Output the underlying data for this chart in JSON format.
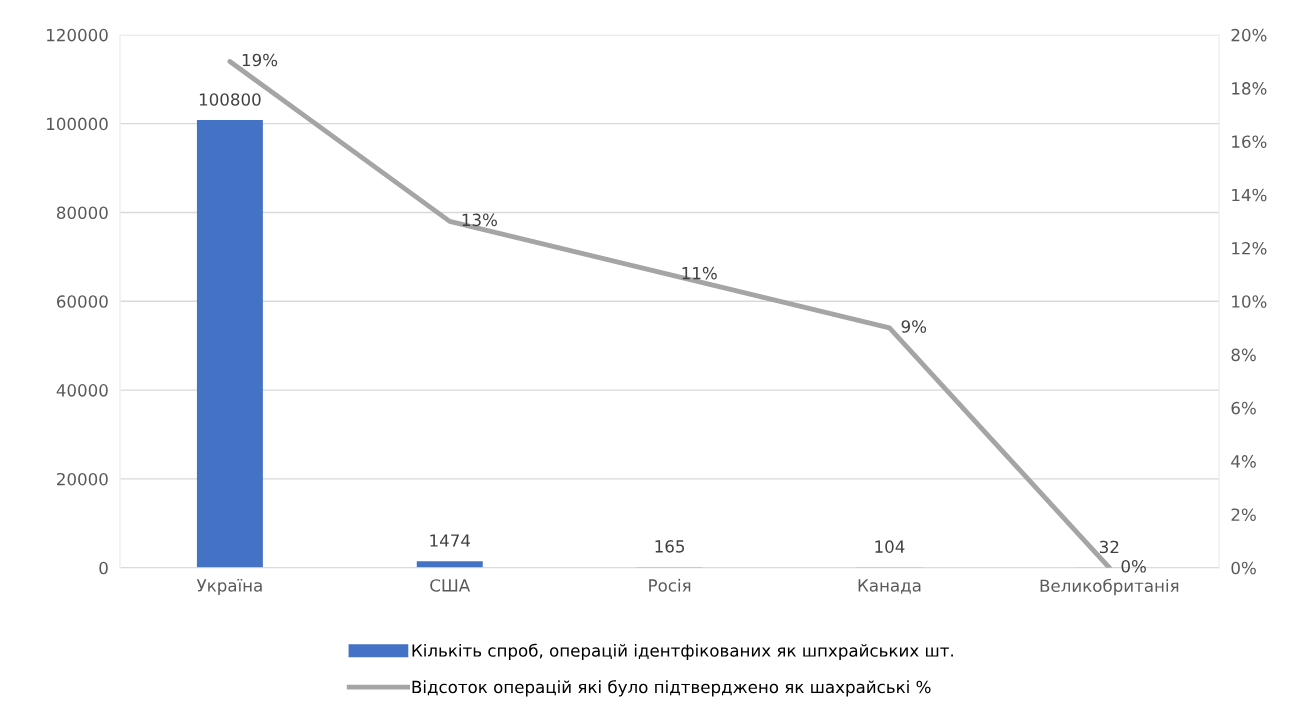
{
  "chart_data": {
    "type": "bar",
    "categories": [
      "Україна",
      "США",
      "Росія",
      "Канада",
      "Великобританія"
    ],
    "series": [
      {
        "name": "Кількіть спроб, операцій ідентфікованих як шпхрайських шт.",
        "color": "#4472c4",
        "values": [
          100800,
          1474,
          165,
          104,
          32
        ],
        "value_labels": [
          "100800",
          "1474",
          "165",
          "104",
          "32"
        ]
      },
      {
        "name": "Відсоток операцій які було підтверджено як шахрайські %",
        "type": "line",
        "axis": "y2",
        "color": "#a5a5a5",
        "values": [
          19,
          13,
          11,
          9,
          0
        ],
        "value_labels": [
          "19%",
          "13%",
          "11%",
          "9%",
          "0%"
        ]
      }
    ],
    "ylim": [
      0,
      120000
    ],
    "yticks": [
      0,
      20000,
      40000,
      60000,
      80000,
      100000,
      120000
    ],
    "y2lim": [
      0,
      20
    ],
    "y2ticks": [
      {
        "value": 0,
        "label": "0%"
      },
      {
        "value": 2,
        "label": "2%"
      },
      {
        "value": 4,
        "label": "4%"
      },
      {
        "value": 6,
        "label": "6%"
      },
      {
        "value": 8,
        "label": "8%"
      },
      {
        "value": 10,
        "label": "10%"
      },
      {
        "value": 12,
        "label": "12%"
      },
      {
        "value": 14,
        "label": "14%"
      },
      {
        "value": 16,
        "label": "16%"
      },
      {
        "value": 18,
        "label": "18%"
      },
      {
        "value": 20,
        "label": "20%"
      }
    ],
    "grid": "y",
    "legend": "bottom",
    "marker": "none"
  }
}
